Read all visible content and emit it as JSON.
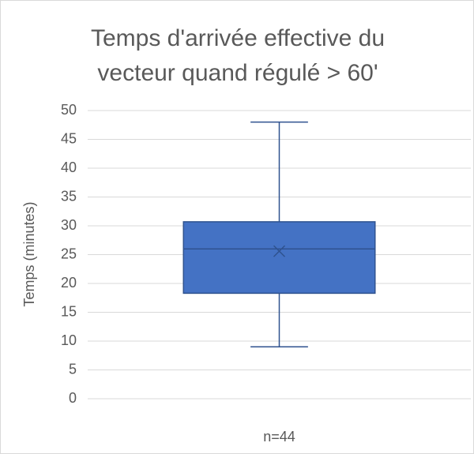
{
  "chart_data": {
    "type": "box",
    "title": "Temps d'arrivée effective du vecteur quand régulé > 60'",
    "y_label": "Temps (minutes)",
    "categories": [
      "n=44"
    ],
    "boxes": [
      {
        "min": 9,
        "q1": 18.3,
        "median": 26,
        "q3": 30.7,
        "max": 48,
        "mean": 25.6
      }
    ],
    "color": "#4472c4",
    "edge_color": "#2f528f",
    "ylim": [
      0,
      50
    ],
    "yticks": [
      0,
      5,
      10,
      15,
      20,
      25,
      30,
      35,
      40,
      45,
      50
    ],
    "grid": true
  }
}
